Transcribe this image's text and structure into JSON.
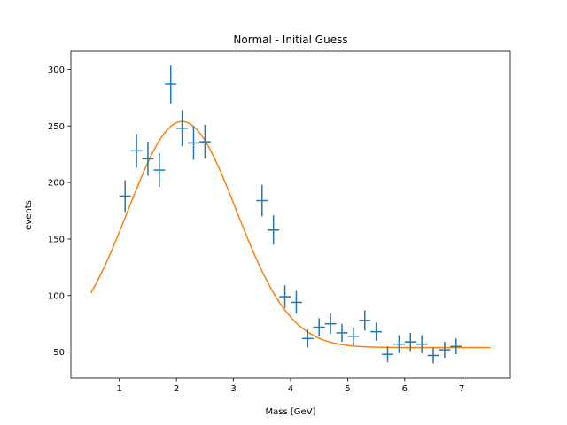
{
  "chart_data": {
    "type": "scatter",
    "title": "Normal - Initial Guess",
    "xlabel": "Mass [GeV]",
    "ylabel": "events",
    "xlim": [
      0.15,
      7.85
    ],
    "ylim": [
      27,
      316
    ],
    "x_ticks": [
      1,
      2,
      3,
      4,
      5,
      6,
      7
    ],
    "y_ticks": [
      50,
      100,
      150,
      200,
      250,
      300
    ],
    "grid": false,
    "legend": "none",
    "colors": {
      "data": "#1f77b4",
      "fit": "#ff7f0e"
    },
    "series": [
      {
        "kind": "errorbar",
        "x_half_width": 0.1,
        "points": [
          {
            "x": 1.1,
            "y": 188,
            "yerr": 14
          },
          {
            "x": 1.3,
            "y": 228,
            "yerr": 15
          },
          {
            "x": 1.5,
            "y": 221,
            "yerr": 15
          },
          {
            "x": 1.7,
            "y": 211,
            "yerr": 15
          },
          {
            "x": 1.9,
            "y": 287,
            "yerr": 17
          },
          {
            "x": 2.1,
            "y": 248,
            "yerr": 16
          },
          {
            "x": 2.3,
            "y": 235,
            "yerr": 15
          },
          {
            "x": 2.5,
            "y": 236,
            "yerr": 15
          },
          {
            "x": 3.5,
            "y": 184,
            "yerr": 14
          },
          {
            "x": 3.7,
            "y": 158,
            "yerr": 13
          },
          {
            "x": 3.9,
            "y": 99,
            "yerr": 10
          },
          {
            "x": 4.1,
            "y": 94,
            "yerr": 10
          },
          {
            "x": 4.3,
            "y": 62,
            "yerr": 8
          },
          {
            "x": 4.5,
            "y": 72,
            "yerr": 8
          },
          {
            "x": 4.7,
            "y": 75,
            "yerr": 9
          },
          {
            "x": 4.9,
            "y": 67,
            "yerr": 8
          },
          {
            "x": 5.1,
            "y": 64,
            "yerr": 8
          },
          {
            "x": 5.3,
            "y": 78,
            "yerr": 9
          },
          {
            "x": 5.5,
            "y": 68,
            "yerr": 8
          },
          {
            "x": 5.7,
            "y": 48,
            "yerr": 7
          },
          {
            "x": 5.9,
            "y": 57,
            "yerr": 8
          },
          {
            "x": 6.1,
            "y": 59,
            "yerr": 8
          },
          {
            "x": 6.3,
            "y": 57,
            "yerr": 8
          },
          {
            "x": 6.5,
            "y": 47,
            "yerr": 7
          },
          {
            "x": 6.7,
            "y": 52,
            "yerr": 7
          },
          {
            "x": 6.9,
            "y": 55,
            "yerr": 7
          }
        ]
      },
      {
        "kind": "line",
        "model": "gaussian_plus_constant",
        "params": {
          "amplitude": 200,
          "mean": 2.1,
          "sigma": 0.95,
          "constant": 54
        },
        "x_range": [
          0.5,
          7.5
        ]
      }
    ]
  }
}
